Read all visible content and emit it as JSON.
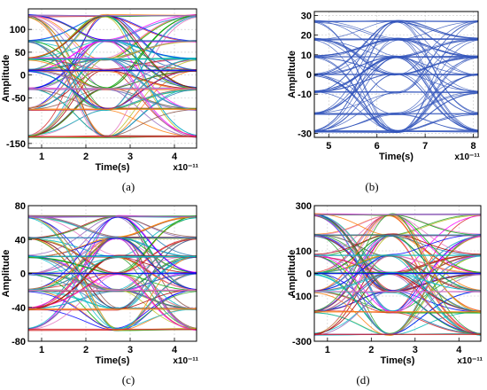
{
  "chart_data": [
    {
      "type": "line",
      "panel_label": "(a)",
      "xlabel": "Time(s)",
      "ylabel": "Amplitude",
      "x_exponent": "x10⁻¹¹",
      "xlim": [
        0.7,
        4.5
      ],
      "ylim": [
        -160,
        145
      ],
      "xticks": [
        "1",
        "2",
        "3",
        "4"
      ],
      "yticks": [
        "-150",
        "-50",
        "0",
        "50",
        "100"
      ],
      "ytick_values": [
        -150,
        -50,
        0,
        50,
        100
      ],
      "eye_crossing": 2.45,
      "levels": [
        -135,
        -75,
        -30,
        10,
        35,
        75,
        130
      ],
      "grid": true,
      "multicolor": true
    },
    {
      "type": "line",
      "panel_label": "(b)",
      "xlabel": "Time(s)",
      "ylabel": "Amplitude",
      "x_exponent": "x10⁻¹¹",
      "xlim": [
        4.7,
        8.1
      ],
      "ylim": [
        -32,
        32
      ],
      "xticks": [
        "5",
        "6",
        "7",
        "8"
      ],
      "yticks": [
        "-30",
        "-10",
        "0",
        "10",
        "20",
        "30"
      ],
      "ytick_values": [
        -30,
        -10,
        0,
        10,
        20,
        30
      ],
      "eye_crossing": 6.4,
      "levels": [
        -29,
        -20,
        -9,
        0,
        9,
        18,
        27
      ],
      "grid": true,
      "color": "#3355bb"
    },
    {
      "type": "line",
      "panel_label": "(c)",
      "xlabel": "Time(s)",
      "ylabel": "Amplitude",
      "x_exponent": "x10⁻¹¹",
      "xlim": [
        0.7,
        4.5
      ],
      "ylim": [
        -80,
        80
      ],
      "xticks": [
        "1",
        "2",
        "3",
        "4"
      ],
      "yticks": [
        "-80",
        "-40",
        "0",
        "40",
        "80"
      ],
      "ytick_values": [
        -80,
        -40,
        0,
        40,
        80
      ],
      "eye_crossing": 2.7,
      "levels": [
        -66,
        -42,
        -20,
        0,
        20,
        42,
        67
      ],
      "grid": true,
      "multicolor": true
    },
    {
      "type": "line",
      "panel_label": "(d)",
      "xlabel": "Time(s)",
      "ylabel": "Amplitude",
      "x_exponent": "x10⁻¹¹",
      "xlim": [
        0.7,
        4.5
      ],
      "ylim": [
        -300,
        300
      ],
      "xticks": [
        "1",
        "2",
        "3",
        "4"
      ],
      "yticks": [
        "-300",
        "-100",
        "0",
        "100",
        "300"
      ],
      "ytick_values": [
        -300,
        -100,
        0,
        100,
        300
      ],
      "eye_crossing": 2.45,
      "levels": [
        -270,
        -170,
        -80,
        0,
        80,
        170,
        260
      ],
      "grid": true,
      "multicolor": true
    }
  ],
  "palette": [
    "#d62728",
    "#1f77b4",
    "#2ca02c",
    "#ff7f0e",
    "#9467bd",
    "#17becf",
    "#e377c2",
    "#bcbd22",
    "#8c564b",
    "#0000ff",
    "#00aa00",
    "#ff00ff",
    "#00bbbb",
    "#aa0000"
  ]
}
